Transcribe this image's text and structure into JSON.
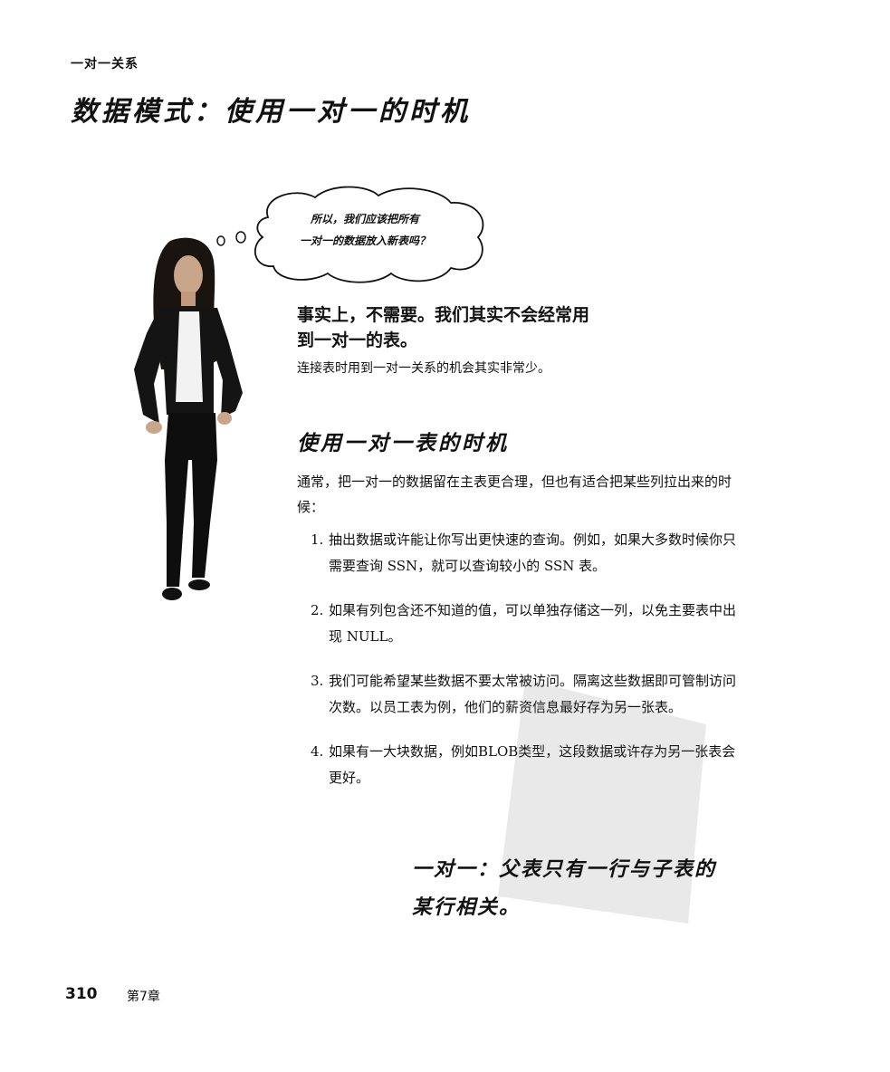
{
  "running_head": "一对一关系",
  "page_title": "数据模式：使用一对一的时机",
  "thought_bubble": {
    "line1": "所以，我们应该把所有",
    "line2": "一对一的数据放入新表吗？"
  },
  "answer": {
    "heading_line1": "事实上，不需要。我们其实不会经常用",
    "heading_line2": "到一对一的表。",
    "note": "连接表时用到一对一关系的机会其实非常少。"
  },
  "section": {
    "title": "使用一对一表的时机",
    "intro": "通常，把一对一的数据留在主表更合理，但也有适合把某些列拉出来的时候："
  },
  "reasons": [
    {
      "num": "1.",
      "text": "抽出数据或许能让你写出更快速的查询。例如，如果大多数时候你只需要查询 SSN，就可以查询较小的 SSN 表。"
    },
    {
      "num": "2.",
      "text": "如果有列包含还不知道的值，可以单独存储这一列，以免主要表中出现 NULL。"
    },
    {
      "num": "3.",
      "text": "我们可能希望某些数据不要太常被访问。隔离这些数据即可管制访问次数。以员工表为例，他们的薪资信息最好存为另一张表。"
    },
    {
      "num": "4.",
      "text": "如果有一大块数据，例如BLOB类型，这段数据或许存为另一张表会更好。"
    }
  ],
  "callout": {
    "line1": "一对一：父表只有一行与子表的",
    "line2": "某行相关。"
  },
  "footer": {
    "page_number": "310",
    "chapter": "第7章"
  }
}
